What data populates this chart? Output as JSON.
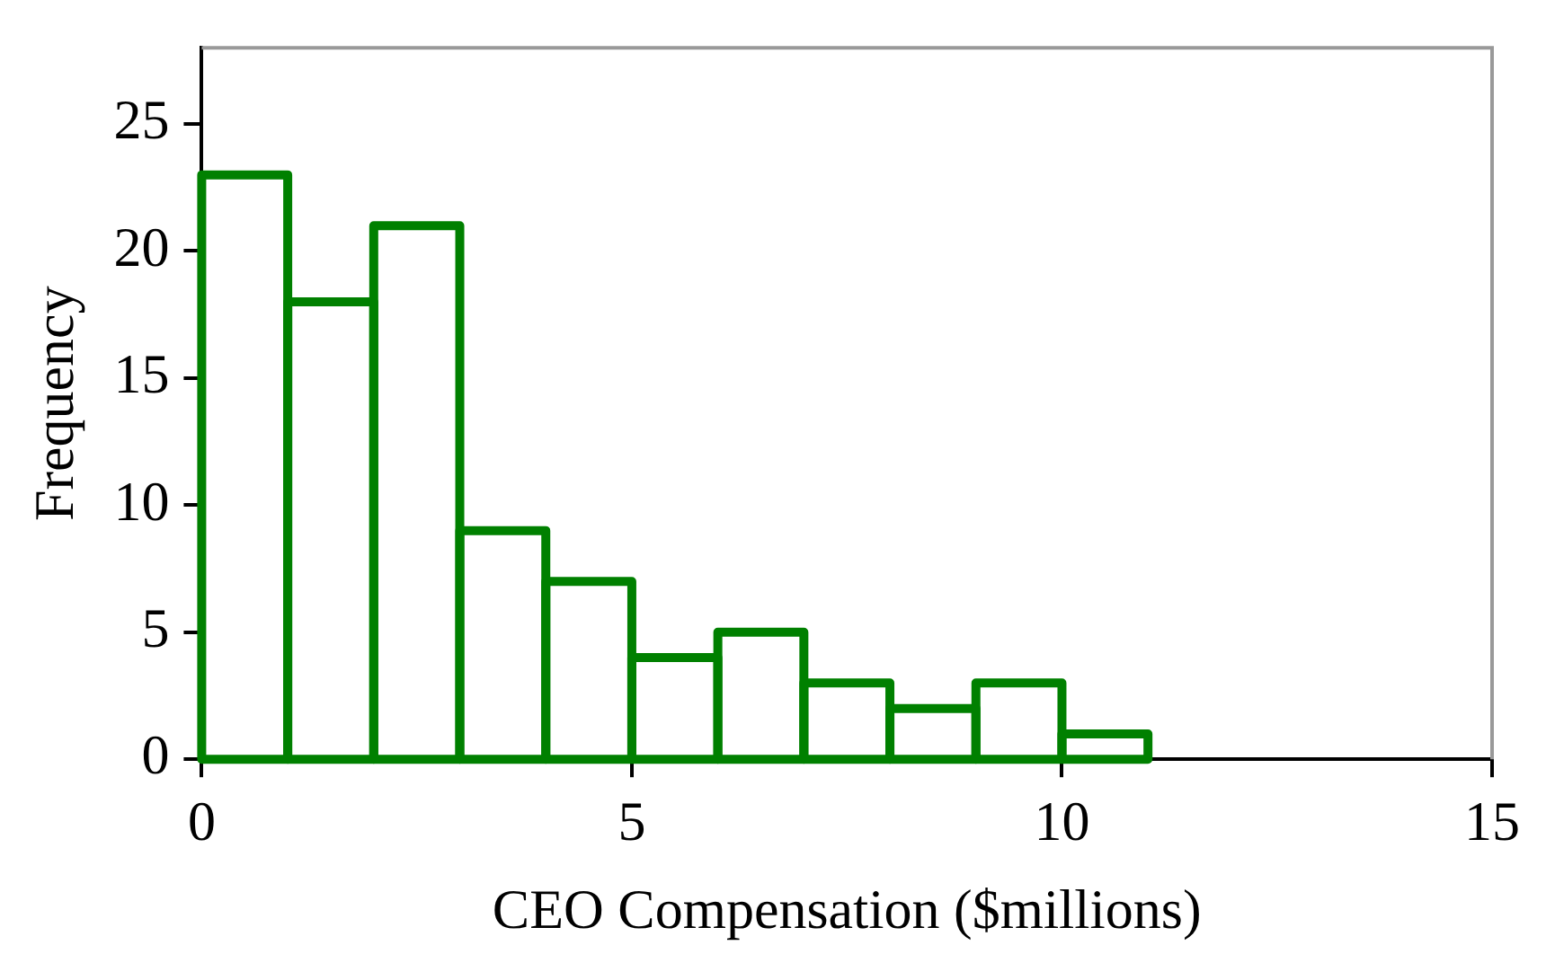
{
  "chart_data": {
    "type": "histogram",
    "xlabel": "CEO Compensation ($millions)",
    "ylabel": "Frequency",
    "bins": [
      0,
      1,
      2,
      3,
      4,
      5,
      6,
      7,
      8,
      9,
      10,
      11
    ],
    "values": [
      23,
      18,
      21,
      9,
      7,
      4,
      5,
      3,
      2,
      3,
      1
    ],
    "color": "#008000",
    "xlim": [
      0,
      15
    ],
    "xticks": [
      0,
      5,
      10,
      15
    ],
    "ylim": [
      0,
      28
    ],
    "yticks": [
      0,
      5,
      10,
      15,
      20,
      25
    ],
    "grid": false
  }
}
